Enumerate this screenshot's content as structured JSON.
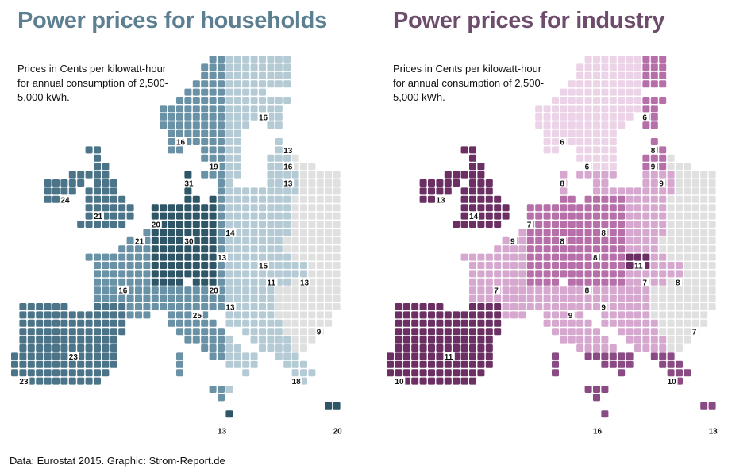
{
  "colors": {
    "households_accent": "#5c7f91",
    "industry_accent": "#6d4c6c",
    "no_data": "#e0e0e0",
    "households_scale": [
      "#b4cad5",
      "#8fafbf",
      "#6a92a6",
      "#4b7488",
      "#2f5667"
    ],
    "industry_scale": [
      "#ecd3e8",
      "#d6a8cf",
      "#b66fa8",
      "#8a4a83",
      "#6b2f63"
    ]
  },
  "households": {
    "title": "Power prices for households",
    "subtitle": "Prices in Cents per kilowatt-hour for annual consumption of 2,500-5,000 kWh."
  },
  "industry": {
    "title": "Power prices for industry",
    "subtitle": "Prices in Cents per kilowatt-hour for annual consumption of 2,500-5,000 kWh."
  },
  "footer": "Data: Eurostat 2015. Graphic: Strom-Report.de",
  "chart_data": [
    {
      "type": "heatmap",
      "title": "Power prices for households",
      "subtitle": "Prices in Cents per kilowatt-hour for annual consumption of 2,500-5,000 kWh.",
      "unit": "Cents per kWh",
      "values_shown": [
        {
          "label": "16",
          "value": 16
        },
        {
          "label": "16",
          "value": 16
        },
        {
          "label": "13",
          "value": 13
        },
        {
          "label": "19",
          "value": 19
        },
        {
          "label": "16",
          "value": 16
        },
        {
          "label": "13",
          "value": 13
        },
        {
          "label": "31",
          "value": 31
        },
        {
          "label": "24",
          "value": 24
        },
        {
          "label": "21",
          "value": 21
        },
        {
          "label": "20",
          "value": 20
        },
        {
          "label": "14",
          "value": 14
        },
        {
          "label": "21",
          "value": 21
        },
        {
          "label": "30",
          "value": 30
        },
        {
          "label": "13",
          "value": 13
        },
        {
          "label": "15",
          "value": 15
        },
        {
          "label": "11",
          "value": 11
        },
        {
          "label": "13",
          "value": 13
        },
        {
          "label": "16",
          "value": 16
        },
        {
          "label": "20",
          "value": 20
        },
        {
          "label": "13",
          "value": 13
        },
        {
          "label": "25",
          "value": 25
        },
        {
          "label": "9",
          "value": 9
        },
        {
          "label": "23",
          "value": 23
        },
        {
          "label": "23",
          "value": 23
        },
        {
          "label": "18",
          "value": 18
        },
        {
          "label": "13",
          "value": 13
        },
        {
          "label": "20",
          "value": 20
        }
      ]
    },
    {
      "type": "heatmap",
      "title": "Power prices for industry",
      "subtitle": "Prices in Cents per kilowatt-hour for annual consumption of 2,500-5,000 kWh.",
      "unit": "Cents per kWh",
      "values_shown": [
        {
          "label": "6",
          "value": 6
        },
        {
          "label": "6",
          "value": 6
        },
        {
          "label": "8",
          "value": 8
        },
        {
          "label": "6",
          "value": 6
        },
        {
          "label": "9",
          "value": 9
        },
        {
          "label": "9",
          "value": 9
        },
        {
          "label": "8",
          "value": 8
        },
        {
          "label": "13",
          "value": 13
        },
        {
          "label": "14",
          "value": 14
        },
        {
          "label": "7",
          "value": 7
        },
        {
          "label": "8",
          "value": 8
        },
        {
          "label": "9",
          "value": 9
        },
        {
          "label": "8",
          "value": 8
        },
        {
          "label": "8",
          "value": 8
        },
        {
          "label": "11",
          "value": 11
        },
        {
          "label": "7",
          "value": 7
        },
        {
          "label": "8",
          "value": 8
        },
        {
          "label": "7",
          "value": 7
        },
        {
          "label": "8",
          "value": 8
        },
        {
          "label": "9",
          "value": 9
        },
        {
          "label": "9",
          "value": 9
        },
        {
          "label": "7",
          "value": 7
        },
        {
          "label": "11",
          "value": 11
        },
        {
          "label": "10",
          "value": 10
        },
        {
          "label": "10",
          "value": 10
        },
        {
          "label": "16",
          "value": 16
        },
        {
          "label": "13",
          "value": 13
        }
      ]
    }
  ]
}
